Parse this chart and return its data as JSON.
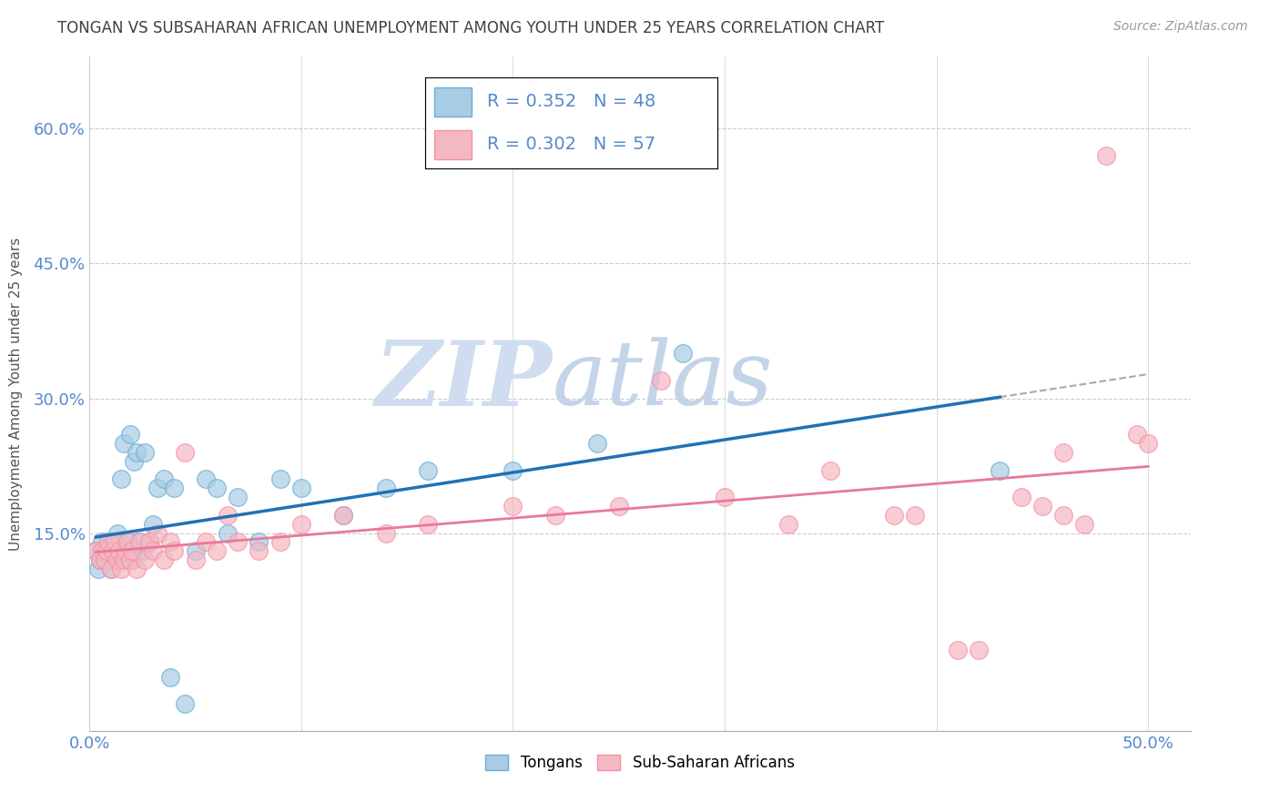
{
  "title": "TONGAN VS SUBSAHARAN AFRICAN UNEMPLOYMENT AMONG YOUTH UNDER 25 YEARS CORRELATION CHART",
  "source_text": "Source: ZipAtlas.com",
  "xlabel_ticks": [
    "0.0%",
    "",
    "",
    "",
    "",
    "50.0%"
  ],
  "ylabel_ticks": [
    "15.0%",
    "30.0%",
    "45.0%",
    "60.0%"
  ],
  "ylabel_label": "Unemployment Among Youth under 25 years",
  "legend_label1": "Tongans",
  "legend_label2": "Sub-Saharan Africans",
  "R1": 0.352,
  "N1": 48,
  "R2": 0.302,
  "N2": 57,
  "color1": "#a8cce4",
  "color2": "#f4b8c1",
  "color1_edge": "#6aaed6",
  "color2_edge": "#f78fa7",
  "trendline1_color": "#2171b5",
  "trendline2_color": "#e8799a",
  "trendline_gray": "#aaaaaa",
  "grid_color": "#cccccc",
  "title_color": "#404040",
  "axis_tick_color": "#5588cc",
  "watermark_zip_color": "#c8d8ee",
  "watermark_atlas_color": "#b8c8de",
  "xlim": [
    0.0,
    0.52
  ],
  "ylim": [
    -0.07,
    0.68
  ],
  "xtick_vals": [
    0.0,
    0.1,
    0.2,
    0.3,
    0.4,
    0.5
  ],
  "ytick_vals": [
    0.15,
    0.3,
    0.45,
    0.6
  ],
  "tongans_x": [
    0.003,
    0.004,
    0.005,
    0.006,
    0.007,
    0.008,
    0.009,
    0.01,
    0.01,
    0.011,
    0.012,
    0.013,
    0.013,
    0.014,
    0.015,
    0.015,
    0.016,
    0.017,
    0.018,
    0.019,
    0.02,
    0.021,
    0.022,
    0.023,
    0.025,
    0.026,
    0.028,
    0.03,
    0.032,
    0.035,
    0.038,
    0.04,
    0.045,
    0.05,
    0.055,
    0.06,
    0.065,
    0.07,
    0.08,
    0.09,
    0.1,
    0.12,
    0.14,
    0.16,
    0.2,
    0.24,
    0.28,
    0.43
  ],
  "tongans_y": [
    0.13,
    0.11,
    0.12,
    0.14,
    0.13,
    0.12,
    0.14,
    0.11,
    0.13,
    0.14,
    0.12,
    0.13,
    0.15,
    0.14,
    0.12,
    0.21,
    0.25,
    0.13,
    0.14,
    0.26,
    0.12,
    0.23,
    0.24,
    0.14,
    0.13,
    0.24,
    0.14,
    0.16,
    0.2,
    0.21,
    -0.01,
    0.2,
    -0.04,
    0.13,
    0.21,
    0.2,
    0.15,
    0.19,
    0.14,
    0.21,
    0.2,
    0.17,
    0.2,
    0.22,
    0.22,
    0.25,
    0.35,
    0.22
  ],
  "subsaharan_x": [
    0.003,
    0.005,
    0.006,
    0.007,
    0.008,
    0.009,
    0.01,
    0.011,
    0.012,
    0.013,
    0.014,
    0.015,
    0.016,
    0.017,
    0.018,
    0.019,
    0.02,
    0.022,
    0.024,
    0.026,
    0.028,
    0.03,
    0.032,
    0.035,
    0.038,
    0.04,
    0.045,
    0.05,
    0.055,
    0.06,
    0.065,
    0.07,
    0.08,
    0.09,
    0.1,
    0.12,
    0.14,
    0.16,
    0.2,
    0.22,
    0.25,
    0.27,
    0.3,
    0.33,
    0.35,
    0.38,
    0.39,
    0.41,
    0.42,
    0.44,
    0.45,
    0.46,
    0.46,
    0.47,
    0.48,
    0.495,
    0.5
  ],
  "subsaharan_y": [
    0.13,
    0.12,
    0.13,
    0.12,
    0.13,
    0.14,
    0.11,
    0.13,
    0.14,
    0.12,
    0.13,
    0.11,
    0.12,
    0.13,
    0.14,
    0.12,
    0.13,
    0.11,
    0.14,
    0.12,
    0.14,
    0.13,
    0.15,
    0.12,
    0.14,
    0.13,
    0.24,
    0.12,
    0.14,
    0.13,
    0.17,
    0.14,
    0.13,
    0.14,
    0.16,
    0.17,
    0.15,
    0.16,
    0.18,
    0.17,
    0.18,
    0.32,
    0.19,
    0.16,
    0.22,
    0.17,
    0.17,
    0.02,
    0.02,
    0.19,
    0.18,
    0.17,
    0.24,
    0.16,
    0.57,
    0.26,
    0.25
  ]
}
